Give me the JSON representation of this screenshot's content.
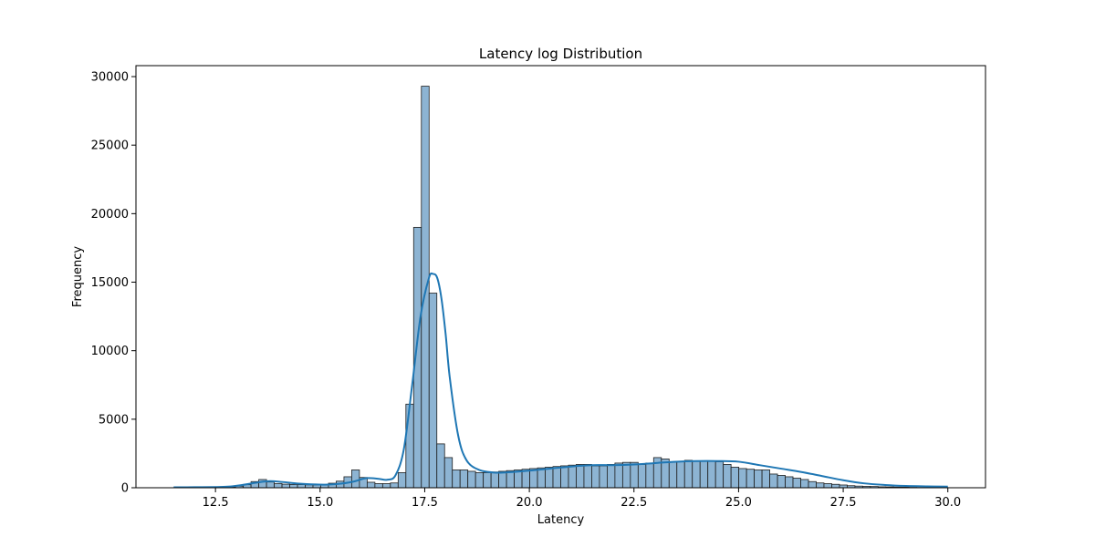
{
  "chart_data": {
    "type": "bar",
    "subtype": "histogram",
    "title": "Latency log Distribution",
    "xlabel": "Latency",
    "ylabel": "Frequency",
    "xlim": [
      10.6,
      30.9
    ],
    "ylim": [
      0,
      30800
    ],
    "xticks": [
      12.5,
      15.0,
      17.5,
      20.0,
      22.5,
      25.0,
      27.5,
      30.0
    ],
    "xtick_labels": [
      "12.5",
      "15.0",
      "17.5",
      "20.0",
      "22.5",
      "25.0",
      "27.5",
      "30.0"
    ],
    "yticks": [
      0,
      5000,
      10000,
      15000,
      20000,
      25000,
      30000
    ],
    "ytick_labels": [
      "0",
      "5000",
      "10000",
      "15000",
      "20000",
      "25000",
      "30000"
    ],
    "grid": false,
    "legend": "none",
    "colors": {
      "bar_fill": "#8db4d3",
      "bar_edge": "#1f1f1f",
      "kde_line": "#1f77b4"
    },
    "bins": {
      "x_start": 11.5,
      "bin_width": 0.185,
      "counts": [
        10,
        10,
        20,
        20,
        20,
        30,
        40,
        60,
        120,
        220,
        450,
        600,
        420,
        300,
        260,
        240,
        230,
        210,
        200,
        240,
        330,
        480,
        800,
        1300,
        750,
        400,
        300,
        300,
        350,
        1100,
        6100,
        19000,
        29300,
        14200,
        3200,
        2200,
        1300,
        1300,
        1200,
        1100,
        1100,
        1150,
        1200,
        1250,
        1300,
        1350,
        1400,
        1450,
        1500,
        1550,
        1600,
        1650,
        1700,
        1700,
        1600,
        1600,
        1700,
        1800,
        1850,
        1850,
        1700,
        1800,
        2200,
        2100,
        1900,
        1900,
        2000,
        1950,
        1950,
        1950,
        1900,
        1700,
        1500,
        1400,
        1350,
        1300,
        1300,
        1000,
        900,
        800,
        700,
        600,
        450,
        350,
        300,
        250,
        200,
        150,
        120,
        100,
        90,
        70,
        60,
        50,
        40,
        30,
        20,
        20,
        10,
        10
      ]
    },
    "kde": {
      "x": [
        11.5,
        12.0,
        12.5,
        12.8,
        13.1,
        13.5,
        13.8,
        14.1,
        14.5,
        14.9,
        15.2,
        15.5,
        15.8,
        16.1,
        16.4,
        16.6,
        16.8,
        17.0,
        17.2,
        17.4,
        17.6,
        17.7,
        17.8,
        17.9,
        18.0,
        18.1,
        18.3,
        18.5,
        18.8,
        19.2,
        19.6,
        20.0,
        20.5,
        21.0,
        21.5,
        22.0,
        22.5,
        23.0,
        23.5,
        24.0,
        24.5,
        25.0,
        25.5,
        26.0,
        26.5,
        27.0,
        27.5,
        28.0,
        28.5,
        29.0,
        29.5,
        30.0
      ],
      "y": [
        30,
        40,
        50,
        80,
        180,
        380,
        480,
        420,
        300,
        240,
        230,
        300,
        450,
        700,
        650,
        580,
        900,
        2800,
        7500,
        12500,
        15300,
        15600,
        15300,
        13800,
        11200,
        8000,
        3800,
        2000,
        1300,
        1100,
        1150,
        1250,
        1400,
        1550,
        1650,
        1650,
        1700,
        1800,
        1900,
        1950,
        1950,
        1900,
        1650,
        1400,
        1150,
        850,
        550,
        320,
        200,
        130,
        100,
        80
      ]
    }
  }
}
